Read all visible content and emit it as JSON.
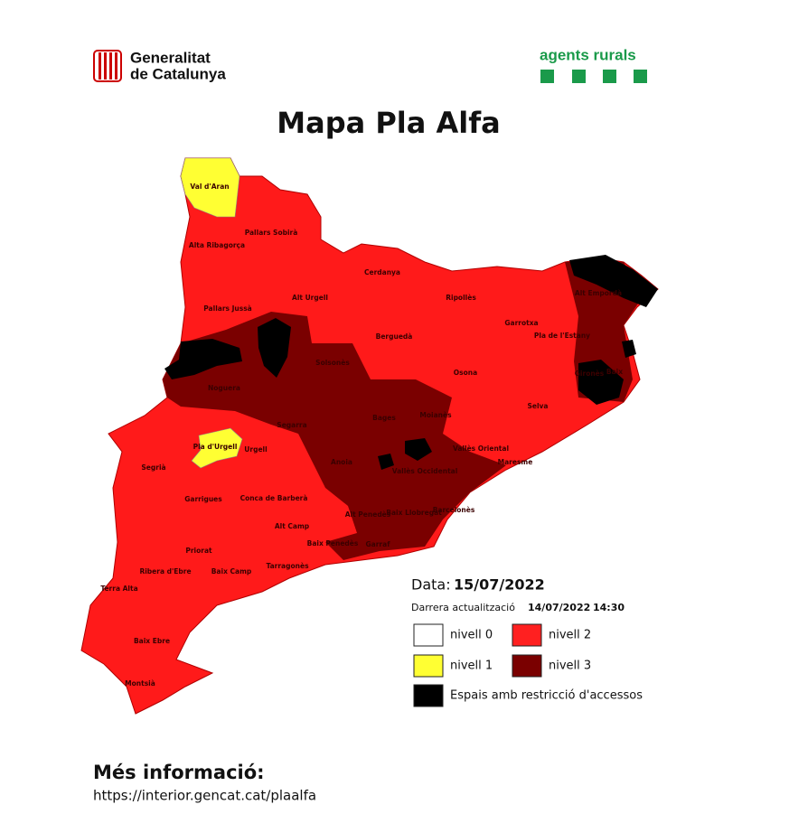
{
  "header": {
    "logo_left": [
      "Generalitat",
      "de Catalunya"
    ],
    "logo_right": "agents rurals"
  },
  "title": "Mapa Pla Alfa",
  "map": {
    "regions": [
      "Val d'Aran",
      "Pallars Sobirà",
      "Alta Ribagorça",
      "Cerdanya",
      "Alt Urgell",
      "Pallars Jussà",
      "Ripollès",
      "Alt Empordà",
      "Garrotxa",
      "Pla de l'Estany",
      "Berguedà",
      "Solsonès",
      "Noguera",
      "Osona",
      "Gironès",
      "Baix",
      "Selva",
      "Segarra",
      "Bages",
      "Moianès",
      "Pla d'Urgell",
      "Urgell",
      "Segrià",
      "Vallès Oriental",
      "Anoia",
      "Vallès Occidental",
      "Maresme",
      "Garrigues",
      "Conca de Barberà",
      "Alt Penedès",
      "Baix Llobregat",
      "Barcelonès",
      "Alt Camp",
      "Baix Penedès",
      "Garraf",
      "Priorat",
      "Ribera d'Ebre",
      "Baix Camp",
      "Tarragonès",
      "Terra Alta",
      "Baix Ebre",
      "Montsià"
    ]
  },
  "legend": {
    "date_label": "Data:",
    "date": "15/07/2022",
    "update_label": "Darrera actualització",
    "update_date": "14/07/2022",
    "update_time": "14:30",
    "items": [
      {
        "label": "nivell 0",
        "color": "#ffffff"
      },
      {
        "label": "nivell 2",
        "color": "#ff2020"
      },
      {
        "label": "nivell 1",
        "color": "#ffff33"
      },
      {
        "label": "nivell 3",
        "color": "#7a0000"
      },
      {
        "label": "Espais amb restricció d'accessos",
        "color": "#000000"
      }
    ]
  },
  "footer": {
    "heading": "Més informació:",
    "url": "https://interior.gencat.cat/plaalfa"
  }
}
